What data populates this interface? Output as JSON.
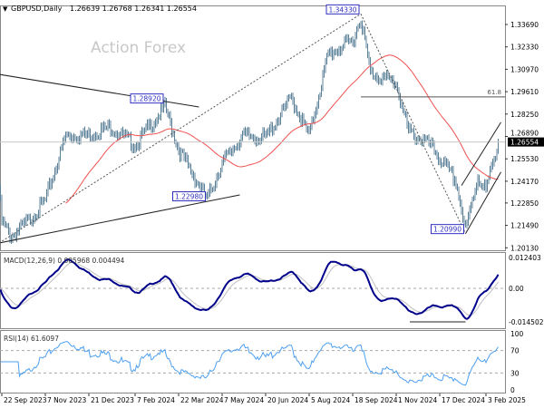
{
  "header": {
    "symbol_label": "GBPUSD,Daily",
    "ohlc": "1.26639 1.26768 1.26341 1.26554",
    "watermark": "Action Forex"
  },
  "colors": {
    "bars": "#5b8299",
    "moving_average": "#f05050",
    "macd_line": "#00008b",
    "macd_signal": "#c0c0c0",
    "rsi_line": "#4ea0f0",
    "label_box": "#3030c0",
    "current_price_bg": "#000000"
  },
  "chart_data": [
    {
      "type": "ohlc",
      "pane": "price",
      "symbol": "GBPUSD",
      "timeframe": "Daily",
      "last_ohlc": {
        "open": 1.26639,
        "high": 1.26768,
        "low": 1.26341,
        "close": 1.26554
      },
      "current_price_label": "1.26554",
      "ylim": [
        1.2013,
        1.3471
      ],
      "yticks": [
        "1.33690",
        "1.32330",
        "1.30970",
        "1.29610",
        "1.28250",
        "1.26890",
        "1.25530",
        "1.24170",
        "1.22850",
        "1.21490",
        "1.20130"
      ],
      "xticks": [
        "22 Sep 2023",
        "7 Nov 2023",
        "21 Dec 2023",
        "7 Feb 2024",
        "22 Mar 2024",
        "7 May 2024",
        "20 Jun 2024",
        "5 Aug 2024",
        "18 Sep 2024",
        "1 Nov 2024",
        "17 Dec 2024",
        "3 Feb 2025"
      ],
      "xtick_dates": [
        "2023-09-22",
        "2023-11-07",
        "2023-12-21",
        "2024-02-07",
        "2024-03-22",
        "2024-05-07",
        "2024-06-20",
        "2024-08-05",
        "2024-09-18",
        "2024-11-01",
        "2024-12-17",
        "2025-02-03"
      ],
      "approx_closes": [
        [
          "2023-09-20",
          1.238
        ],
        [
          "2023-09-22",
          1.217
        ],
        [
          "2023-10-03",
          1.208
        ],
        [
          "2023-10-20",
          1.218
        ],
        [
          "2023-11-07",
          1.23
        ],
        [
          "2023-11-28",
          1.2692
        ],
        [
          "2023-12-21",
          1.27
        ],
        [
          "2024-01-12",
          1.2747
        ],
        [
          "2024-02-07",
          1.2637
        ],
        [
          "2024-03-08",
          1.2868
        ],
        [
          "2024-03-22",
          1.2609
        ],
        [
          "2024-04-22",
          1.2306
        ],
        [
          "2024-05-07",
          1.2527
        ],
        [
          "2024-05-28",
          1.2692
        ],
        [
          "2024-06-20",
          1.2681
        ],
        [
          "2024-07-17",
          1.2923
        ],
        [
          "2024-08-05",
          1.2692
        ],
        [
          "2024-08-23",
          1.3187
        ],
        [
          "2024-09-18",
          1.327
        ],
        [
          "2024-09-26",
          1.3408
        ],
        [
          "2024-10-07",
          1.3077
        ],
        [
          "2024-11-01",
          1.3011
        ],
        [
          "2024-11-14",
          1.2719
        ],
        [
          "2024-12-06",
          1.2637
        ],
        [
          "2024-12-17",
          1.2554
        ],
        [
          "2025-01-02",
          1.2416
        ],
        [
          "2025-01-13",
          1.2114
        ],
        [
          "2025-01-24",
          1.2444
        ],
        [
          "2025-02-03",
          1.2362
        ],
        [
          "2025-02-14",
          1.2655
        ]
      ],
      "annotations": {
        "price_labels": [
          {
            "text": "1.34330",
            "date": "2024-09-26",
            "price": 1.3433
          },
          {
            "text": "1.28920",
            "date": "2024-03-08",
            "price": 1.2892
          },
          {
            "text": "1.22980",
            "date": "2024-04-22",
            "price": 1.2298
          },
          {
            "text": "1.20990",
            "date": "2025-01-13",
            "price": 1.2099
          }
        ],
        "fib_label": {
          "text": "61.8",
          "price": 1.2929,
          "from": "2024-09-26"
        },
        "trendlines": [
          {
            "style": "solid",
            "from": [
              "2023-09-20",
              1.3066
            ],
            "to": [
              "2024-04-12",
              1.2868
            ]
          },
          {
            "style": "solid",
            "from": [
              "2023-09-20",
              1.2042
            ],
            "to": [
              "2024-05-24",
              1.2334
            ]
          },
          {
            "style": "dotted",
            "from": [
              "2023-09-20",
              1.2042
            ],
            "to": [
              "2024-09-26",
              1.3433
            ]
          },
          {
            "style": "dotted",
            "from": [
              "2024-09-26",
              1.3433
            ],
            "to": [
              "2025-01-13",
              1.2099
            ]
          },
          {
            "style": "solid",
            "from": [
              "2025-01-13",
              1.2099
            ],
            "to": [
              "2025-02-18",
              1.2473
            ]
          },
          {
            "style": "solid",
            "from": [
              "2025-01-08",
              1.2391
            ],
            "to": [
              "2025-02-18",
              1.2775
            ]
          }
        ]
      }
    },
    {
      "type": "line",
      "pane": "macd",
      "title": "MACD(12,26,9) 0.005968 0.004494",
      "ylim": [
        -0.014502,
        0.012403
      ],
      "yticks": [
        "0.012403",
        "0.00",
        "-0.014502"
      ],
      "divergence_line": {
        "from": "2024-11-15",
        "to": "2025-01-13",
        "value": -0.0135
      }
    },
    {
      "type": "line",
      "pane": "rsi",
      "title": "RSI(14) 61.6097",
      "ylim": [
        0,
        100
      ],
      "yticks": [
        "100",
        "70",
        "30",
        "0"
      ],
      "levels": [
        70,
        30
      ]
    }
  ]
}
